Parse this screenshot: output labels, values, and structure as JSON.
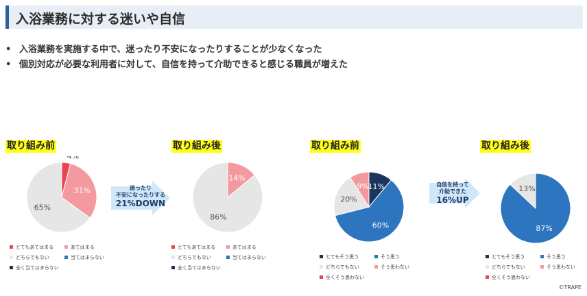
{
  "header": {
    "title": "入浴業務に対する迷いや自信"
  },
  "bullets": [
    "入浴業務を実施する中で、迷ったり不安になったりすることが少なくなった",
    "個別対応が必要な利用者に対して、自信を持って介助できると感じる職員が増えた"
  ],
  "bullet_mark": "•",
  "arrows": [
    {
      "line1": "迷ったり",
      "line2": "不安になったりする",
      "line3": "21%DOWN"
    },
    {
      "line1": "自信を持って",
      "line2": "介助できた",
      "line3": "16%UP"
    }
  ],
  "copyright": "©TRAPE",
  "chart_data": [
    {
      "type": "pie",
      "title": "取り組み前",
      "slices": [
        {
          "label": "とてもあてはまる",
          "value": 4,
          "color": "#e8454f",
          "display": "4%"
        },
        {
          "label": "あてはまる",
          "value": 31,
          "color": "#f4999d",
          "display": "31%"
        },
        {
          "label": "どちらでもない",
          "value": 65,
          "color": "#e6e6e6",
          "display": "65%"
        },
        {
          "label": "当てはまらない",
          "value": 0,
          "color": "#2e75c0",
          "display": ""
        },
        {
          "label": "全く当てはまらない",
          "value": 0,
          "color": "#1b365d",
          "display": ""
        }
      ]
    },
    {
      "type": "pie",
      "title": "取り組み後",
      "slices": [
        {
          "label": "とてもあてはまる",
          "value": 0,
          "color": "#e8454f",
          "display": ""
        },
        {
          "label": "あてはまる",
          "value": 14,
          "color": "#f4999d",
          "display": "14%"
        },
        {
          "label": "どちらでもない",
          "value": 86,
          "color": "#e6e6e6",
          "display": "86%"
        },
        {
          "label": "当てはまらない",
          "value": 0,
          "color": "#2e75c0",
          "display": ""
        },
        {
          "label": "全く当てはまらない",
          "value": 0,
          "color": "#1b365d",
          "display": ""
        }
      ]
    },
    {
      "type": "pie",
      "title": "取り組み前",
      "slices": [
        {
          "label": "とてもそう思う",
          "value": 11,
          "color": "#1b365d",
          "display": "11%"
        },
        {
          "label": "そう思う",
          "value": 60,
          "color": "#2e75c0",
          "display": "60%"
        },
        {
          "label": "どちらでもない",
          "value": 20,
          "color": "#e6e6e6",
          "display": "20%"
        },
        {
          "label": "そう思わない",
          "value": 9,
          "color": "#f4999d",
          "display": "9%"
        },
        {
          "label": "全くそう思わない",
          "value": 0,
          "color": "#e8454f",
          "display": ""
        }
      ]
    },
    {
      "type": "pie",
      "title": "取り組み後",
      "slices": [
        {
          "label": "とてもそう思う",
          "value": 0,
          "color": "#1b365d",
          "display": ""
        },
        {
          "label": "そう思う",
          "value": 87,
          "color": "#2e75c0",
          "display": "87%"
        },
        {
          "label": "どちらでもない",
          "value": 13,
          "color": "#e6e6e6",
          "display": "13%"
        },
        {
          "label": "そう思わない",
          "value": 0,
          "color": "#f4999d",
          "display": ""
        },
        {
          "label": "全くそう思わない",
          "value": 0,
          "color": "#e8454f",
          "display": ""
        }
      ]
    }
  ]
}
